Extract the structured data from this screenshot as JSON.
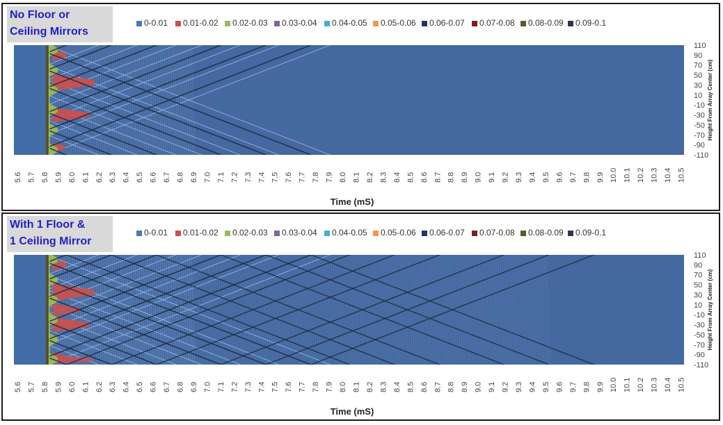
{
  "panels": [
    {
      "title_lines": [
        "No Floor or",
        "Ceiling Mirrors"
      ],
      "mirrors": 0
    },
    {
      "title_lines": [
        "With 1 Floor &",
        "1 Ceiling Mirror"
      ],
      "mirrors": 1
    }
  ],
  "legend": [
    {
      "label": "0-0.01",
      "color": "#4a78b8"
    },
    {
      "label": "0.01-0.02",
      "color": "#c9504d"
    },
    {
      "label": "0.02-0.03",
      "color": "#9bbb59"
    },
    {
      "label": "0.03-0.04",
      "color": "#8064a2"
    },
    {
      "label": "0.04-0.05",
      "color": "#4bacc6"
    },
    {
      "label": "0.05-0.06",
      "color": "#f79646"
    },
    {
      "label": "0.06-0.07",
      "color": "#1f3864"
    },
    {
      "label": "0.07-0.08",
      "color": "#7b2020"
    },
    {
      "label": "0.08-0.09",
      "color": "#4f6228"
    },
    {
      "label": "0.09-0.1",
      "color": "#3b2d5a"
    }
  ],
  "chart_data": [
    {
      "type": "heatmap",
      "title": "No Floor or Ceiling Mirrors",
      "xlabel": "Time (mS)",
      "ylabel": "Height From Array Center (cm)",
      "xlim": [
        5.6,
        10.5
      ],
      "ylim": [
        -110,
        110
      ],
      "x_ticks": [
        "5.6",
        "5.7",
        "5.8",
        "5.9",
        "6.0",
        "6.1",
        "6.2",
        "6.3",
        "6.4",
        "6.5",
        "6.6",
        "6.7",
        "6.8",
        "6.9",
        "7.0",
        "7.1",
        "7.2",
        "7.3",
        "7.4",
        "7.5",
        "7.6",
        "7.7",
        "7.8",
        "7.9",
        "8.0",
        "8.1",
        "8.2",
        "8.3",
        "8.4",
        "8.5",
        "8.6",
        "8.7",
        "8.8",
        "8.9",
        "9.0",
        "9.1",
        "9.2",
        "9.3",
        "9.4",
        "9.5",
        "9.6",
        "9.7",
        "9.8",
        "9.9",
        "10.0",
        "10.1",
        "10.2",
        "10.3",
        "10.4",
        "10.5"
      ],
      "y_ticks": [
        "110",
        "90",
        "70",
        "50",
        "30",
        "10",
        "-10",
        "-30",
        "-50",
        "-70",
        "-90",
        "-110"
      ],
      "background_bin": "0-0.01",
      "arrival_time": 5.82,
      "sources_cm": [
        -95,
        -60,
        -25,
        25,
        60,
        95
      ],
      "mirror_images": 0
    },
    {
      "type": "heatmap",
      "title": "With 1 Floor & 1 Ceiling Mirror",
      "xlabel": "Time (mS)",
      "ylabel": "Height From Array Center (cm)",
      "xlim": [
        5.6,
        10.5
      ],
      "ylim": [
        -110,
        110
      ],
      "x_ticks": [
        "5.6",
        "5.7",
        "5.8",
        "5.9",
        "6.0",
        "6.1",
        "6.2",
        "6.3",
        "6.4",
        "6.5",
        "6.6",
        "6.7",
        "6.8",
        "6.9",
        "7.0",
        "7.1",
        "7.2",
        "7.3",
        "7.4",
        "7.5",
        "7.6",
        "7.7",
        "7.8",
        "7.9",
        "8.0",
        "8.1",
        "8.2",
        "8.3",
        "8.4",
        "8.5",
        "8.6",
        "8.7",
        "8.8",
        "8.9",
        "9.0",
        "9.1",
        "9.2",
        "9.3",
        "9.4",
        "9.5",
        "9.6",
        "9.7",
        "9.8",
        "9.9",
        "10.0",
        "10.1",
        "10.2",
        "10.3",
        "10.4",
        "10.5"
      ],
      "y_ticks": [
        "110",
        "90",
        "70",
        "50",
        "30",
        "10",
        "-10",
        "-30",
        "-50",
        "-70",
        "-90",
        "-110"
      ],
      "background_bin": "0-0.01",
      "arrival_time": 5.82,
      "sources_cm": [
        -95,
        -60,
        -25,
        25,
        60,
        95
      ],
      "mirror_images": 1
    }
  ]
}
